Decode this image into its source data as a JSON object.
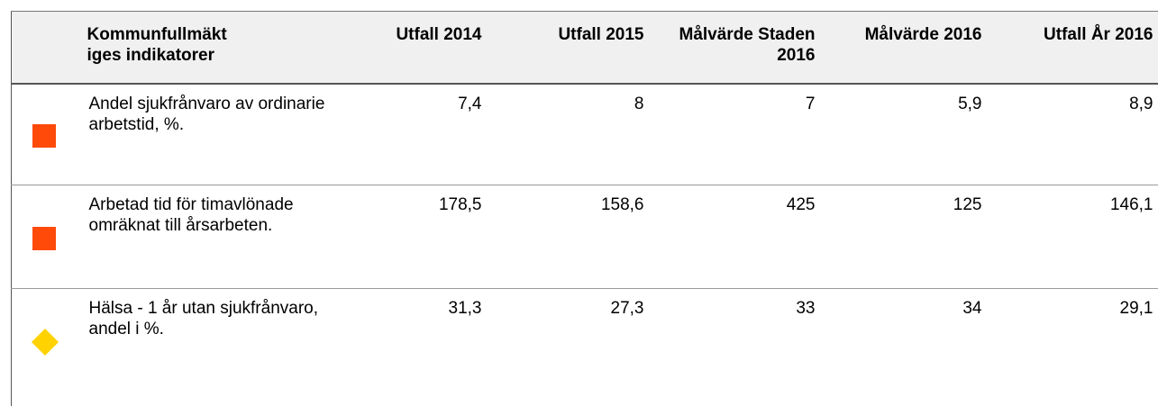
{
  "table": {
    "header": [
      "Kommunfullmäktiges indikatorer",
      "Utfall 2014",
      "Utfall 2015",
      "Målvärde Staden 2016",
      "Målvärde 2016",
      "Utfall År 2016"
    ],
    "rows": [
      [
        "Andel sjukfrånvaro av ordinarie arbetstid, %.",
        "7,4",
        "8",
        "7",
        "5,9",
        "8,9"
      ],
      [
        "Arbetad tid för timavlönade omräknat till årsarbeten.",
        "178,5",
        "158,6",
        "425",
        "125",
        "146,1"
      ],
      [
        "Hälsa - 1 år utan sjukfrånvaro, andel i %.",
        "31,3",
        "27,3",
        "33",
        "34",
        "29,1"
      ]
    ]
  }
}
